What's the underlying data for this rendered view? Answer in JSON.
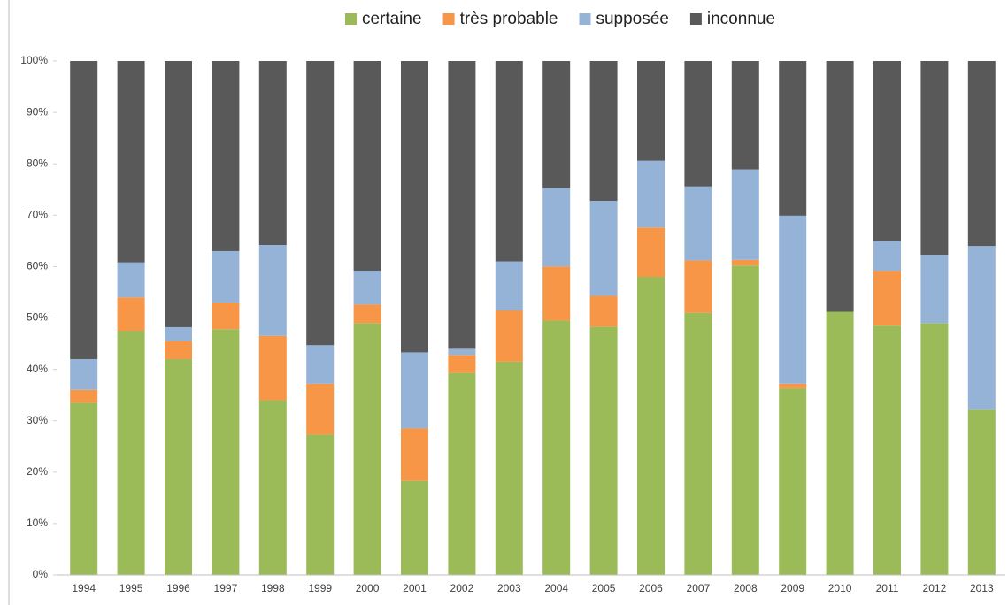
{
  "chart_data": {
    "type": "stacked_bar_100",
    "categories": [
      "1994",
      "1995",
      "1996",
      "1997",
      "1998",
      "1999",
      "2000",
      "2001",
      "2002",
      "2003",
      "2004",
      "2005",
      "2006",
      "2007",
      "2008",
      "2009",
      "2010",
      "2011",
      "2012",
      "2013"
    ],
    "series": [
      {
        "name": "certaine",
        "color": "#9bbb59",
        "values": [
          33.5,
          47.5,
          42,
          47.8,
          34,
          27.3,
          49,
          18.3,
          39.3,
          41.5,
          49.5,
          48.3,
          58,
          51,
          60.2,
          36.3,
          51.2,
          48.5,
          49,
          32.2
        ]
      },
      {
        "name": "très probable",
        "color": "#f79646",
        "values": [
          2.5,
          6.5,
          3.5,
          5.2,
          12.5,
          9.9,
          3.6,
          10.2,
          3.5,
          10,
          10.5,
          6,
          9.6,
          10.2,
          1.1,
          0.9,
          0,
          10.7,
          0,
          0
        ]
      },
      {
        "name": "supposée",
        "color": "#95b3d7",
        "values": [
          6,
          6.8,
          2.7,
          10,
          17.7,
          7.5,
          6.6,
          14.8,
          1.2,
          9.5,
          15.3,
          18.5,
          13,
          14.4,
          17.6,
          32.7,
          0,
          5.8,
          13.3,
          31.8
        ]
      },
      {
        "name": "inconnue",
        "color": "#595959",
        "values": [
          58,
          39.2,
          51.8,
          37,
          35.8,
          55.3,
          40.8,
          56.7,
          56,
          39,
          24.7,
          27.2,
          19.4,
          24.4,
          21.1,
          30.1,
          48.8,
          35,
          37.7,
          36
        ]
      }
    ],
    "ylim": [
      0,
      100
    ],
    "yticks": [
      {
        "value": 0,
        "label": "0%"
      },
      {
        "value": 10,
        "label": "10%"
      },
      {
        "value": 20,
        "label": "20%"
      },
      {
        "value": 30,
        "label": "30%"
      },
      {
        "value": 40,
        "label": "40%"
      },
      {
        "value": 50,
        "label": "50%"
      },
      {
        "value": 60,
        "label": "60%"
      },
      {
        "value": 70,
        "label": "70%"
      },
      {
        "value": 80,
        "label": "80%"
      },
      {
        "value": 90,
        "label": "90%"
      },
      {
        "value": 100,
        "label": "100%"
      }
    ],
    "legend": "top"
  }
}
